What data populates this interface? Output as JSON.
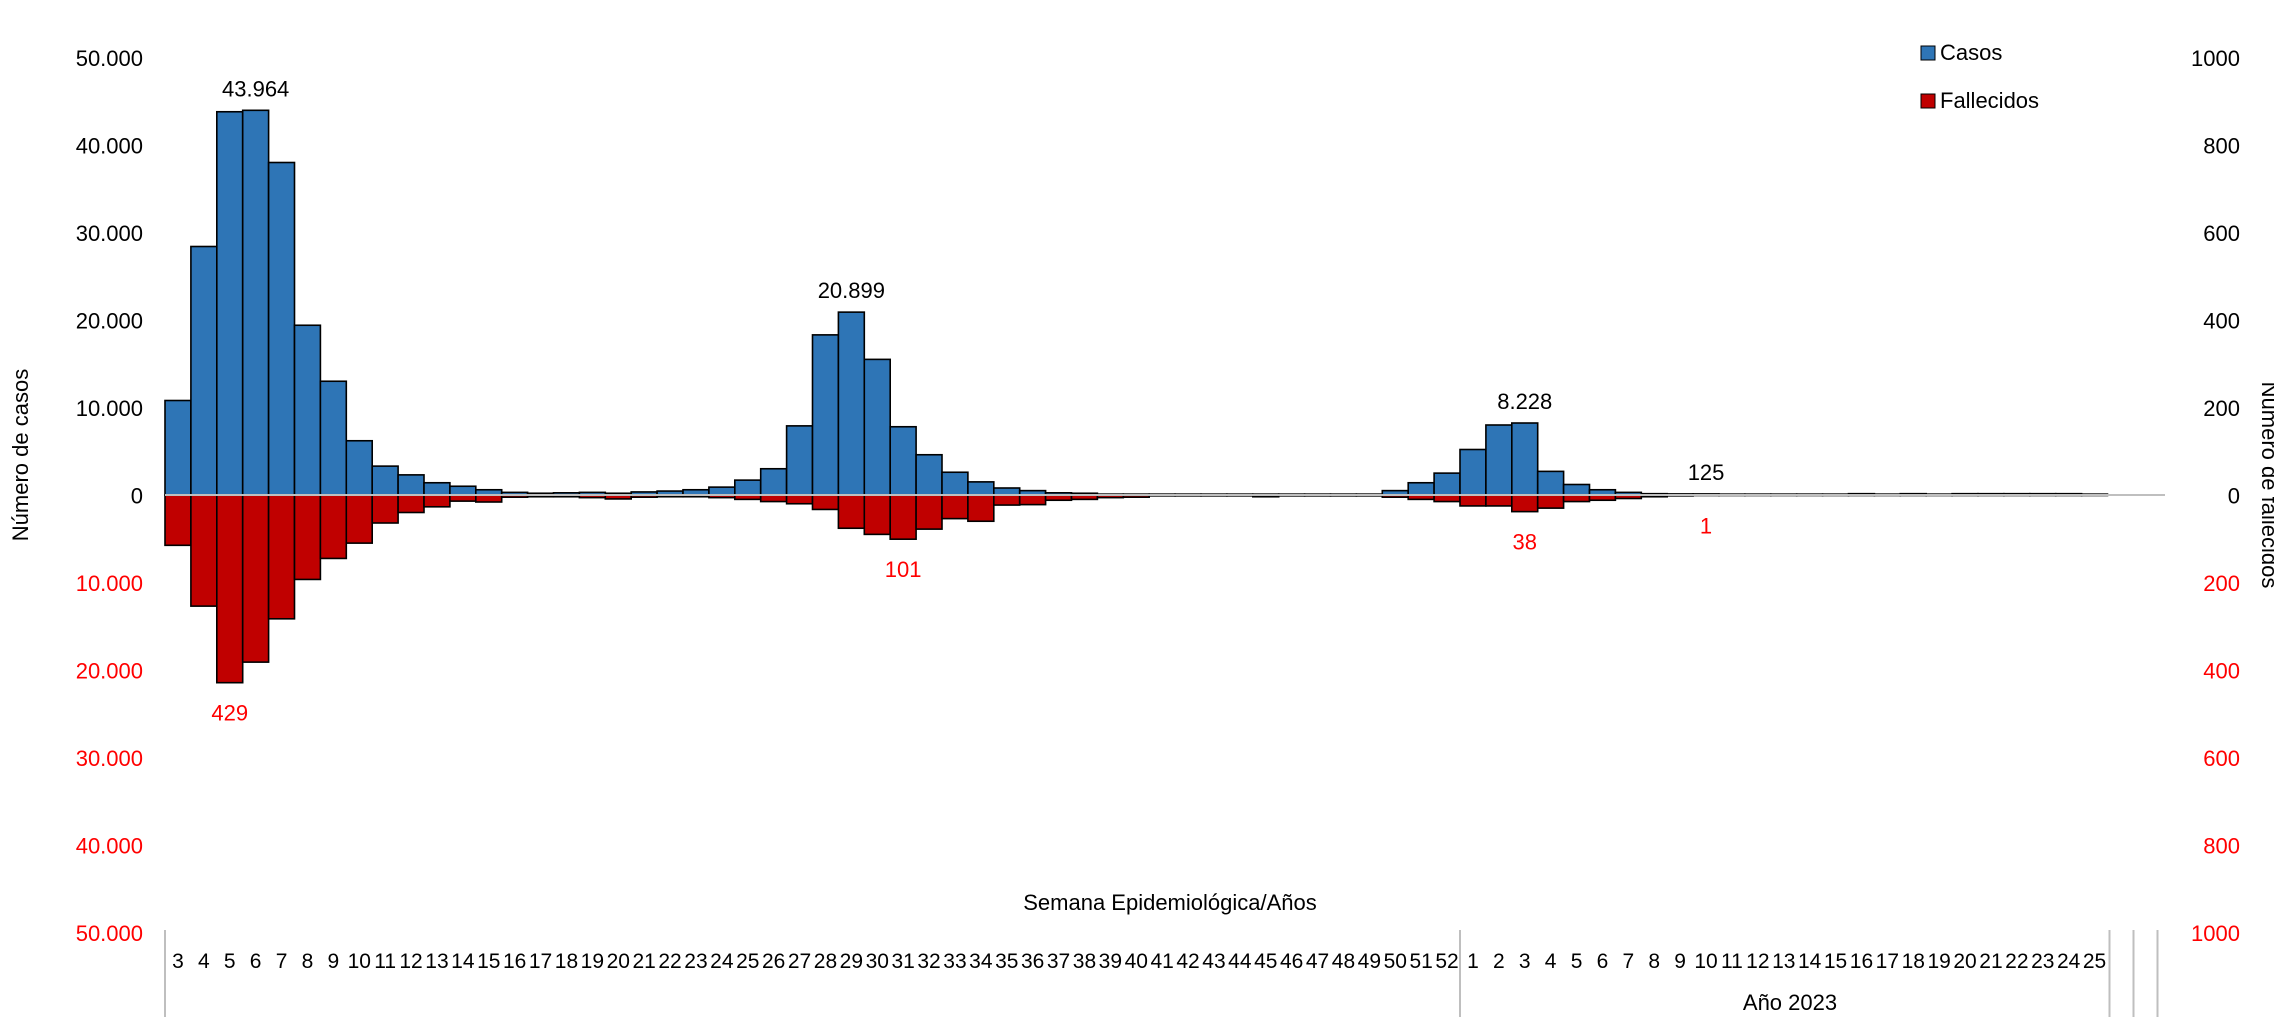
{
  "colors": {
    "cases": "#2e75b6",
    "deaths": "#c00000",
    "bar_stroke": "#000000",
    "red_text": "#ff0000",
    "axis_line": "#bfbfbf"
  },
  "chart_data": {
    "type": "bar",
    "ylabel_left": "Número de casos",
    "ylabel_right": "Número de fallecidos",
    "xlabel": "Semana Epidemiológica/Años",
    "y_left_ticks": [
      {
        "label": "50.000",
        "red": false
      },
      {
        "label": "40.000",
        "red": false
      },
      {
        "label": "30.000",
        "red": false
      },
      {
        "label": "20.000",
        "red": false
      },
      {
        "label": "10.000",
        "red": false
      },
      {
        "label": "0",
        "red": false
      },
      {
        "label": "10.000",
        "red": true
      },
      {
        "label": "20.000",
        "red": true
      },
      {
        "label": "30.000",
        "red": true
      },
      {
        "label": "40.000",
        "red": true
      },
      {
        "label": "50.000",
        "red": true
      }
    ],
    "y_right_ticks": [
      {
        "label": "1000",
        "red": false
      },
      {
        "label": "800",
        "red": false
      },
      {
        "label": "600",
        "red": false
      },
      {
        "label": "400",
        "red": false
      },
      {
        "label": "200",
        "red": false
      },
      {
        "label": "0",
        "red": false
      },
      {
        "label": "200",
        "red": true
      },
      {
        "label": "400",
        "red": true
      },
      {
        "label": "600",
        "red": true
      },
      {
        "label": "800",
        "red": true
      },
      {
        "label": "1000",
        "red": true
      }
    ],
    "ylim_cases": [
      -50000,
      50000
    ],
    "ylim_deaths": [
      -1000,
      1000
    ],
    "legend_position": "top-right",
    "legend": [
      "Casos",
      "Fallecidos"
    ],
    "categories": [
      "3",
      "4",
      "5",
      "6",
      "7",
      "8",
      "9",
      "10",
      "11",
      "12",
      "13",
      "14",
      "15",
      "16",
      "17",
      "18",
      "19",
      "20",
      "21",
      "22",
      "23",
      "24",
      "25",
      "26",
      "27",
      "28",
      "29",
      "30",
      "31",
      "32",
      "33",
      "34",
      "35",
      "36",
      "37",
      "38",
      "39",
      "40",
      "41",
      "42",
      "43",
      "44",
      "45",
      "46",
      "47",
      "48",
      "49",
      "50",
      "51",
      "52",
      "1",
      "2",
      "3",
      "4",
      "5",
      "6",
      "7",
      "8",
      "9",
      "10",
      "11",
      "12",
      "13",
      "14",
      "15",
      "16",
      "17",
      "18",
      "19",
      "20",
      "21",
      "22",
      "23",
      "24",
      "25"
    ],
    "group_label": "Año 2023",
    "series": [
      {
        "name": "Casos",
        "values": [
          10800,
          28400,
          43800,
          43964,
          38000,
          19400,
          13000,
          6200,
          3300,
          2300,
          1400,
          1000,
          600,
          300,
          200,
          250,
          300,
          200,
          350,
          450,
          600,
          900,
          1700,
          3000,
          7900,
          18300,
          20899,
          15500,
          7800,
          4600,
          2600,
          1500,
          800,
          500,
          250,
          200,
          100,
          100,
          100,
          100,
          100,
          100,
          100,
          100,
          100,
          100,
          100,
          500,
          1400,
          2500,
          5200,
          8000,
          8228,
          2700,
          1200,
          600,
          300,
          150,
          125,
          125,
          100,
          100,
          100,
          100,
          100,
          150,
          100,
          150,
          100,
          150,
          150,
          150,
          150,
          150,
          100
        ]
      },
      {
        "name": "Fallecidos",
        "values": [
          115,
          254,
          429,
          382,
          283,
          193,
          145,
          110,
          64,
          40,
          27,
          14,
          16,
          5,
          4,
          4,
          6,
          9,
          5,
          4,
          4,
          6,
          10,
          15,
          20,
          33,
          76,
          90,
          101,
          78,
          54,
          60,
          23,
          22,
          12,
          10,
          6,
          5,
          2,
          2,
          2,
          2,
          4,
          2,
          2,
          2,
          2,
          5,
          10,
          15,
          25,
          25,
          38,
          30,
          15,
          12,
          8,
          4,
          2,
          1,
          1,
          1,
          1,
          1,
          1,
          1,
          1,
          1,
          1,
          1,
          1,
          1,
          1,
          1,
          1
        ]
      }
    ],
    "annotations": {
      "cases": [
        {
          "index": 3,
          "label": "43.964"
        },
        {
          "index": 26,
          "label": "20.899"
        },
        {
          "index": 52,
          "label": "8.228"
        },
        {
          "index": 59,
          "label": "125"
        }
      ],
      "deaths": [
        {
          "index": 2,
          "label": "429"
        },
        {
          "index": 28,
          "label": "101"
        },
        {
          "index": 52,
          "label": "38"
        },
        {
          "index": 59,
          "label": "1"
        }
      ]
    }
  }
}
